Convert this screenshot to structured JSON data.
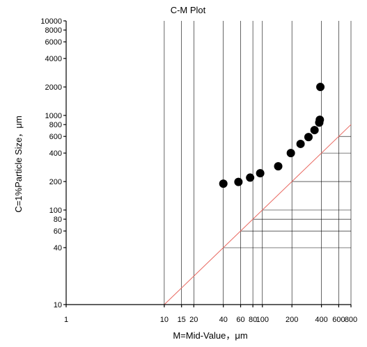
{
  "chart_data": {
    "type": "scatter",
    "title": "C-M Plot",
    "xlabel": "M=Mid-Value，μm",
    "ylabel": "C=1%Particle Size，μm",
    "x_scale": "log",
    "y_scale": "log",
    "xlim": [
      1,
      800
    ],
    "ylim": [
      10,
      10000
    ],
    "grid": true,
    "x_gridlines": [
      10,
      15,
      20,
      40,
      60,
      80,
      100,
      200,
      400,
      600,
      800
    ],
    "y_gridlines": [
      40,
      60,
      80,
      100,
      200,
      400,
      600,
      800,
      1000,
      2000,
      4000,
      6000,
      8000,
      10000
    ],
    "x_ticks": [
      {
        "value": 1,
        "label": "1"
      },
      {
        "value": 10,
        "label": "10"
      },
      {
        "value": 15,
        "label": "15"
      },
      {
        "value": 20,
        "label": "20"
      },
      {
        "value": 40,
        "label": "40"
      },
      {
        "value": 60,
        "label": "60"
      },
      {
        "value": 80,
        "label": "80"
      },
      {
        "value": 100,
        "label": "100"
      },
      {
        "value": 200,
        "label": "200"
      },
      {
        "value": 400,
        "label": "400"
      },
      {
        "value": 600,
        "label": "600"
      },
      {
        "value": 800,
        "label": "800"
      }
    ],
    "y_ticks": [
      {
        "value": 10,
        "label": "10"
      },
      {
        "value": 40,
        "label": "40"
      },
      {
        "value": 60,
        "label": "60"
      },
      {
        "value": 80,
        "label": "80"
      },
      {
        "value": 100,
        "label": "100"
      },
      {
        "value": 200,
        "label": "200"
      },
      {
        "value": 400,
        "label": "400"
      },
      {
        "value": 600,
        "label": "600"
      },
      {
        "value": 800,
        "label": "800"
      },
      {
        "value": 1000,
        "label": "1000"
      },
      {
        "value": 2000,
        "label": "2000"
      },
      {
        "value": 4000,
        "label": "4000"
      },
      {
        "value": 6000,
        "label": "6000"
      },
      {
        "value": 8000,
        "label": "8000"
      },
      {
        "value": 10000,
        "label": "10000"
      }
    ],
    "reference_line": {
      "from": [
        10,
        10
      ],
      "to": [
        800,
        800
      ],
      "color": "#e8665e"
    },
    "points": [
      {
        "x": 40,
        "y": 190
      },
      {
        "x": 57,
        "y": 198
      },
      {
        "x": 75,
        "y": 220
      },
      {
        "x": 95,
        "y": 245
      },
      {
        "x": 145,
        "y": 290
      },
      {
        "x": 195,
        "y": 400
      },
      {
        "x": 245,
        "y": 500
      },
      {
        "x": 295,
        "y": 590
      },
      {
        "x": 340,
        "y": 700
      },
      {
        "x": 380,
        "y": 840
      },
      {
        "x": 385,
        "y": 900
      },
      {
        "x": 390,
        "y": 2000
      }
    ],
    "point_color": "#000000"
  }
}
